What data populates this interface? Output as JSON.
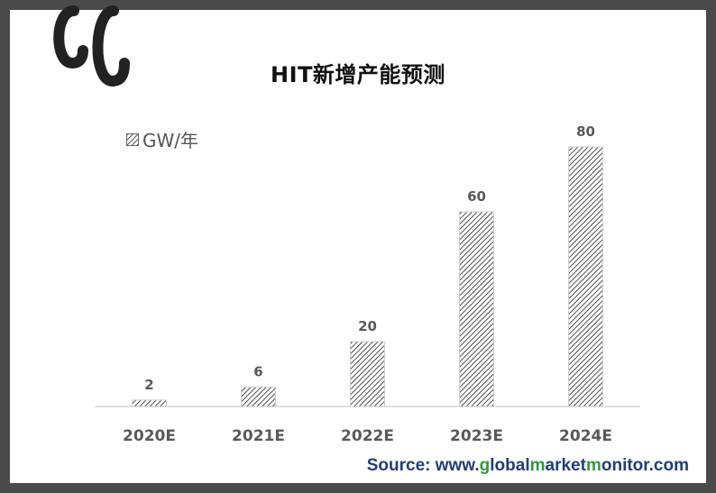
{
  "title": "HIT新增产能预测",
  "legend_label": "GW/年",
  "source": {
    "prefix": "Source: www.",
    "parts": [
      {
        "text": "g",
        "green": true
      },
      {
        "text": "lobal",
        "green": false
      },
      {
        "text": "m",
        "green": true
      },
      {
        "text": "arket",
        "green": false
      },
      {
        "text": "m",
        "green": true
      },
      {
        "text": "onitor",
        "green": false
      }
    ],
    "suffix": ".com"
  },
  "colors": {
    "frame": "#4a4a4a",
    "bar_fill": "#ffffff",
    "bar_hatch": "#222222",
    "axis": "#bfbfbf",
    "label": "#595959",
    "source_blue": "#1f3f7a",
    "source_green": "#2e9b3a"
  },
  "logo_icon": "cc-logo-icon",
  "chart_data": {
    "type": "bar",
    "title": "HIT新增产能预测",
    "categories": [
      "2020E",
      "2021E",
      "2022E",
      "2023E",
      "2024E"
    ],
    "series": [
      {
        "name": "GW/年",
        "values": [
          2,
          6,
          20,
          60,
          80
        ]
      }
    ],
    "ylim": [
      0,
      80
    ],
    "grid": false,
    "legend": "top-left",
    "data_labels": true
  }
}
